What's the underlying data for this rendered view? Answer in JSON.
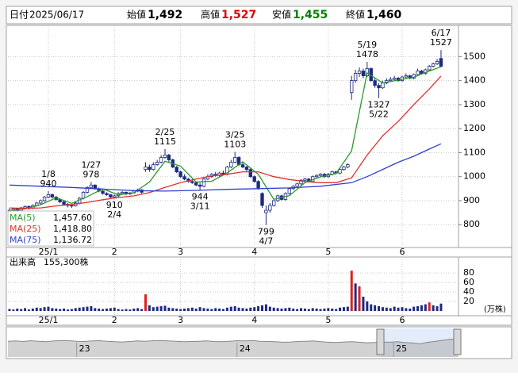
{
  "chart_data": {
    "type": "candlestick",
    "header": {
      "date_label": "日付",
      "date": "2025/06/17",
      "items": [
        {
          "name": "始値",
          "value": 1492,
          "label": "1,492",
          "color": "#000000"
        },
        {
          "name": "高値",
          "value": 1527,
          "label": "1,527",
          "color": "#e00000"
        },
        {
          "name": "安値",
          "value": 1455,
          "label": "1,455",
          "color": "#008000"
        },
        {
          "name": "終値",
          "value": 1460,
          "label": "1,460",
          "color": "#000000"
        }
      ]
    },
    "x": [
      0,
      1,
      2,
      3,
      4,
      5,
      6,
      7,
      8,
      9,
      10,
      11,
      12,
      13,
      14,
      15,
      16,
      17,
      18,
      19,
      20,
      21,
      22,
      23,
      24,
      25,
      26,
      27,
      28,
      29,
      30,
      31,
      32,
      33,
      34,
      35,
      36,
      37,
      38,
      39,
      40,
      41,
      42,
      43,
      44,
      45,
      46,
      47,
      48,
      49,
      50,
      51,
      52,
      53,
      54,
      55,
      56,
      57,
      58,
      59,
      60,
      61,
      62,
      63,
      64,
      65,
      66,
      67,
      68,
      69,
      70,
      71,
      72,
      73,
      74,
      75,
      76,
      77,
      78,
      79,
      80,
      81,
      82,
      83,
      84,
      85,
      86,
      87,
      88,
      89,
      90,
      91,
      92,
      93,
      94,
      95,
      96,
      97,
      98,
      99,
      100,
      101,
      102,
      103,
      104,
      105,
      106,
      107,
      108,
      109,
      110,
      111
    ],
    "ohlc": [
      [
        855,
        868,
        850,
        860
      ],
      [
        860,
        870,
        855,
        865
      ],
      [
        866,
        870,
        852,
        858
      ],
      [
        858,
        875,
        856,
        870
      ],
      [
        870,
        880,
        865,
        875
      ],
      [
        876,
        880,
        862,
        868
      ],
      [
        868,
        885,
        865,
        880
      ],
      [
        880,
        895,
        876,
        890
      ],
      [
        890,
        905,
        885,
        900
      ],
      [
        900,
        920,
        895,
        915
      ],
      [
        915,
        940,
        910,
        925
      ],
      [
        925,
        930,
        910,
        915
      ],
      [
        915,
        920,
        900,
        905
      ],
      [
        905,
        910,
        890,
        895
      ],
      [
        895,
        900,
        880,
        885
      ],
      [
        885,
        890,
        872,
        880
      ],
      [
        880,
        885,
        870,
        878
      ],
      [
        878,
        895,
        875,
        890
      ],
      [
        890,
        915,
        885,
        910
      ],
      [
        910,
        940,
        905,
        935
      ],
      [
        935,
        960,
        930,
        955
      ],
      [
        955,
        978,
        950,
        965
      ],
      [
        965,
        968,
        945,
        950
      ],
      [
        950,
        955,
        935,
        940
      ],
      [
        940,
        945,
        925,
        930
      ],
      [
        930,
        935,
        920,
        925
      ],
      [
        925,
        928,
        912,
        915
      ],
      [
        915,
        925,
        910,
        920
      ],
      [
        920,
        935,
        915,
        930
      ],
      [
        930,
        940,
        925,
        935
      ],
      [
        935,
        938,
        922,
        928
      ],
      [
        928,
        936,
        924,
        932
      ],
      [
        932,
        945,
        930,
        940
      ],
      [
        940,
        950,
        935,
        945
      ],
      [
        945,
        948,
        930,
        935
      ],
      [
        1030,
        1060,
        1020,
        1040
      ],
      [
        1040,
        1050,
        1020,
        1030
      ],
      [
        1030,
        1060,
        1025,
        1050
      ],
      [
        1050,
        1070,
        1045,
        1060
      ],
      [
        1060,
        1090,
        1055,
        1080
      ],
      [
        1080,
        1115,
        1075,
        1090
      ],
      [
        1090,
        1095,
        1060,
        1070
      ],
      [
        1070,
        1075,
        1035,
        1040
      ],
      [
        1040,
        1045,
        1015,
        1020
      ],
      [
        1020,
        1025,
        995,
        1000
      ],
      [
        1000,
        1010,
        985,
        990
      ],
      [
        990,
        995,
        975,
        980
      ],
      [
        980,
        990,
        970,
        975
      ],
      [
        975,
        980,
        960,
        965
      ],
      [
        965,
        975,
        944,
        960
      ],
      [
        960,
        995,
        955,
        990
      ],
      [
        990,
        1010,
        985,
        1000
      ],
      [
        1000,
        1015,
        995,
        1010
      ],
      [
        1010,
        1020,
        1000,
        1005
      ],
      [
        1005,
        1020,
        1000,
        1015
      ],
      [
        1015,
        1025,
        1005,
        1010
      ],
      [
        1010,
        1045,
        1005,
        1040
      ],
      [
        1040,
        1070,
        1035,
        1060
      ],
      [
        1060,
        1103,
        1055,
        1080
      ],
      [
        1080,
        1085,
        1045,
        1050
      ],
      [
        1050,
        1060,
        1035,
        1040
      ],
      [
        1040,
        1045,
        1020,
        1030
      ],
      [
        1030,
        1035,
        995,
        1000
      ],
      [
        1000,
        1005,
        975,
        980
      ],
      [
        980,
        985,
        945,
        950
      ],
      [
        930,
        935,
        870,
        880
      ],
      [
        850,
        880,
        799,
        860
      ],
      [
        860,
        890,
        850,
        880
      ],
      [
        880,
        905,
        875,
        900
      ],
      [
        900,
        925,
        895,
        920
      ],
      [
        920,
        925,
        900,
        905
      ],
      [
        905,
        935,
        900,
        930
      ],
      [
        930,
        955,
        925,
        950
      ],
      [
        950,
        965,
        945,
        960
      ],
      [
        960,
        975,
        955,
        970
      ],
      [
        970,
        990,
        965,
        985
      ],
      [
        985,
        995,
        980,
        990
      ],
      [
        990,
        995,
        975,
        980
      ],
      [
        980,
        1005,
        975,
        1000
      ],
      [
        1000,
        1010,
        995,
        1005
      ],
      [
        1005,
        1015,
        1000,
        1010
      ],
      [
        1010,
        1015,
        995,
        1000
      ],
      [
        1000,
        1015,
        995,
        1010
      ],
      [
        1010,
        1025,
        1005,
        1020
      ],
      [
        1020,
        1025,
        1010,
        1015
      ],
      [
        1015,
        1035,
        1010,
        1030
      ],
      [
        1030,
        1045,
        1025,
        1040
      ],
      [
        1040,
        1055,
        1035,
        1050
      ],
      [
        1350,
        1420,
        1320,
        1400
      ],
      [
        1400,
        1445,
        1390,
        1430
      ],
      [
        1430,
        1455,
        1415,
        1440
      ],
      [
        1440,
        1450,
        1410,
        1420
      ],
      [
        1420,
        1478,
        1415,
        1450
      ],
      [
        1450,
        1455,
        1395,
        1400
      ],
      [
        1400,
        1410,
        1370,
        1380
      ],
      [
        1380,
        1390,
        1327,
        1370
      ],
      [
        1370,
        1400,
        1365,
        1390
      ],
      [
        1390,
        1410,
        1385,
        1400
      ],
      [
        1400,
        1415,
        1395,
        1405
      ],
      [
        1405,
        1420,
        1400,
        1410
      ],
      [
        1410,
        1415,
        1395,
        1400
      ],
      [
        1400,
        1420,
        1395,
        1415
      ],
      [
        1415,
        1430,
        1410,
        1420
      ],
      [
        1420,
        1425,
        1405,
        1410
      ],
      [
        1410,
        1430,
        1405,
        1425
      ],
      [
        1425,
        1450,
        1420,
        1440
      ],
      [
        1440,
        1445,
        1425,
        1430
      ],
      [
        1430,
        1450,
        1425,
        1445
      ],
      [
        1445,
        1465,
        1440,
        1460
      ],
      [
        1460,
        1475,
        1455,
        1470
      ],
      [
        1470,
        1490,
        1465,
        1480
      ],
      [
        1492,
        1527,
        1455,
        1460
      ]
    ],
    "up_fill": "#ffffff",
    "down_fill": "#1f2a80",
    "candle_stroke": "#1f2a80",
    "xlim": [
      -0.4,
      115.5
    ],
    "xticks": [
      {
        "value": 10,
        "label": "25/1"
      },
      {
        "value": 27,
        "label": "2"
      },
      {
        "value": 44,
        "label": "3"
      },
      {
        "value": 63,
        "label": "4"
      },
      {
        "value": 82,
        "label": "5"
      },
      {
        "value": 101,
        "label": "6"
      }
    ],
    "ylim": [
      705,
      1630
    ],
    "yticks": [
      800,
      900,
      1000,
      1100,
      1200,
      1300,
      1400,
      1500
    ],
    "grid": true,
    "moving_averages": [
      {
        "name": "MA(5)",
        "color": "#2a9a2a",
        "latest": {
          "value": 1457.6,
          "label": "1,457.60"
        },
        "x": [
          0,
          4,
          8,
          12,
          16,
          20,
          24,
          28,
          32,
          36,
          40,
          44,
          48,
          52,
          56,
          60,
          64,
          68,
          72,
          76,
          80,
          84,
          88,
          92,
          96,
          100,
          104,
          108,
          111
        ],
        "values": [
          858,
          866,
          883,
          912,
          889,
          917,
          949,
          924,
          933,
          978,
          1064,
          1044,
          978,
          981,
          1016,
          1062,
          1010,
          906,
          921,
          975,
          999,
          1013,
          1107,
          1432,
          1390,
          1402,
          1414,
          1440,
          1457.6
        ]
      },
      {
        "name": "MA(25)",
        "color": "#e03030",
        "latest": {
          "value": 1418.8,
          "label": "1,418.80"
        },
        "x": [
          0,
          4,
          8,
          12,
          16,
          20,
          24,
          28,
          32,
          36,
          40,
          44,
          48,
          52,
          56,
          60,
          64,
          68,
          72,
          76,
          80,
          84,
          88,
          92,
          96,
          100,
          104,
          108,
          111
        ],
        "values": [
          870,
          868,
          870,
          878,
          884,
          893,
          904,
          913,
          920,
          934,
          955,
          975,
          990,
          1003,
          1010,
          1020,
          1020,
          1000,
          988,
          980,
          975,
          975,
          995,
          1090,
          1170,
          1230,
          1300,
          1365,
          1418.8
        ]
      },
      {
        "name": "MA(75)",
        "color": "#3040d0",
        "latest": {
          "value": 1136.72,
          "label": "1,136.72"
        },
        "x": [
          0,
          8,
          16,
          24,
          32,
          40,
          48,
          56,
          64,
          72,
          80,
          88,
          92,
          96,
          100,
          104,
          108,
          111
        ],
        "values": [
          965,
          960,
          955,
          948,
          942,
          940,
          943,
          947,
          950,
          953,
          960,
          975,
          1000,
          1030,
          1060,
          1085,
          1115,
          1136.72
        ]
      }
    ],
    "annotations": [
      {
        "x": 10,
        "side": "high",
        "date": "1/8",
        "price": 940
      },
      {
        "x": 21,
        "side": "high",
        "date": "1/27",
        "price": 978
      },
      {
        "x": 27,
        "side": "low",
        "date": "2/4",
        "price": 910
      },
      {
        "x": 40,
        "side": "high",
        "date": "2/25",
        "price": 1115
      },
      {
        "x": 49,
        "side": "low",
        "date": "3/11",
        "price": 944
      },
      {
        "x": 58,
        "side": "high",
        "date": "3/25",
        "price": 1103
      },
      {
        "x": 66,
        "side": "low",
        "date": "4/7",
        "price": 799
      },
      {
        "x": 92,
        "side": "high",
        "date": "5/19",
        "price": 1478
      },
      {
        "x": 95,
        "side": "low",
        "date": "5/22",
        "price": 1327
      },
      {
        "x": 111,
        "side": "high",
        "date": "6/17",
        "price": 1527
      }
    ],
    "volume": {
      "title": "出来高",
      "latest": {
        "value": 155300,
        "label": "155,300株"
      },
      "unit": "(万株)",
      "color": "#1f2a80",
      "highlight_color": "#e02020",
      "highlight": [
        35,
        88,
        90,
        108
      ],
      "ylim": [
        0,
        92
      ],
      "yticks": [
        20,
        40,
        60,
        80
      ],
      "values": [
        4,
        3,
        5,
        4,
        6,
        3,
        5,
        7,
        6,
        8,
        9,
        6,
        5,
        4,
        5,
        3,
        4,
        6,
        7,
        8,
        9,
        10,
        6,
        5,
        4,
        5,
        6,
        7,
        4,
        3,
        4,
        3,
        5,
        6,
        4,
        35,
        12,
        8,
        9,
        10,
        11,
        7,
        6,
        5,
        4,
        5,
        6,
        7,
        5,
        8,
        6,
        5,
        4,
        6,
        5,
        4,
        7,
        9,
        10,
        7,
        6,
        5,
        7,
        8,
        10,
        12,
        14,
        9,
        7,
        6,
        5,
        6,
        7,
        5,
        4,
        6,
        5,
        4,
        6,
        5,
        4,
        5,
        6,
        5,
        4,
        7,
        8,
        9,
        85,
        58,
        52,
        30,
        20,
        14,
        12,
        10,
        8,
        7,
        6,
        9,
        7,
        8,
        6,
        5,
        9,
        10,
        12,
        14,
        18,
        12,
        10,
        15.53
      ]
    },
    "navigator": {
      "color": "#b4b4b4",
      "ylim": [
        0,
        100
      ],
      "xticks": [
        {
          "value": 9,
          "label": "23"
        },
        {
          "value": 30,
          "label": "24"
        },
        {
          "value": 50.5,
          "label": "25"
        }
      ],
      "values": [
        62,
        63,
        61,
        64,
        62,
        60,
        63,
        65,
        64,
        62,
        61,
        63,
        64,
        62,
        60,
        59,
        61,
        63,
        62,
        64,
        65,
        63,
        62,
        60,
        61,
        62,
        63,
        61,
        60,
        62,
        64,
        63,
        65,
        62,
        61,
        60,
        58,
        59,
        61,
        62,
        63,
        60,
        58,
        57,
        59,
        60,
        58,
        56,
        57,
        59,
        58,
        60,
        57,
        55,
        52,
        58,
        62,
        66,
        70,
        72
      ]
    }
  }
}
